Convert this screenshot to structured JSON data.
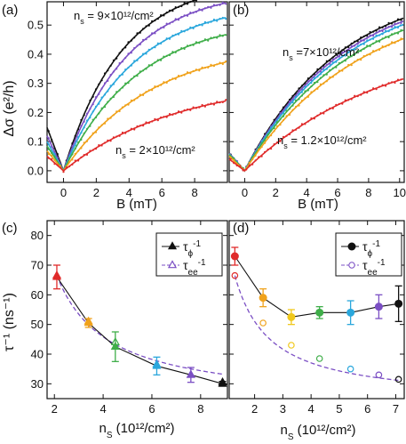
{
  "chart_data": [
    {
      "panel": "(a)",
      "type": "line",
      "xlabel": "B (mT)",
      "ylabel": "Δσ (e²/h)",
      "xlim": [
        -1,
        10
      ],
      "ylim": [
        -0.04,
        0.58
      ],
      "xticks": [
        0,
        2,
        4,
        6,
        8
      ],
      "yticks": [
        0.0,
        0.1,
        0.2,
        0.3,
        0.4,
        0.5
      ],
      "annotations": [
        {
          "text": "n",
          "sub": "s",
          "rest": " = 9×10¹²/cm²"
        },
        {
          "text": "n",
          "sub": "s",
          "rest": " = 2×10¹²/cm²"
        }
      ],
      "series": [
        {
          "color": "#111111",
          "values_at": [
            0.558,
            0.148
          ],
          "smax": 0.556
        },
        {
          "color": "#7b4fc4",
          "values_at": [
            0.525,
            0.138
          ],
          "smax": 0.53
        },
        {
          "color": "#2aa7dc",
          "values_at": [
            0.49,
            0.128
          ],
          "smax": 0.492
        },
        {
          "color": "#3fae49",
          "values_at": [
            0.445,
            0.115
          ],
          "smax": 0.448
        },
        {
          "color": "#f0a21b",
          "values_at": [
            0.375,
            0.08
          ],
          "smax": 0.376
        },
        {
          "color": "#e02b2b",
          "values_at": [
            0.27,
            0.06
          ],
          "smax": 0.268
        }
      ]
    },
    {
      "panel": "(b)",
      "type": "line",
      "xlabel": "B (mT)",
      "ylabel": "",
      "xlim": [
        -1,
        10.3
      ],
      "ylim": [
        -0.04,
        0.58
      ],
      "xticks": [
        0,
        2,
        4,
        6,
        8,
        10
      ],
      "annotations": [
        {
          "text": "n",
          "sub": "s",
          "rest": " =7×10¹²/cm²"
        },
        {
          "text": "n",
          "sub": "s",
          "rest": " = 1.2×10¹²/cm²"
        }
      ],
      "series": [
        {
          "color": "#111111",
          "smax": 0.405
        },
        {
          "color": "#7b4fc4",
          "smax": 0.402
        },
        {
          "color": "#2aa7dc",
          "smax": 0.398
        },
        {
          "color": "#3fae49",
          "smax": 0.39
        },
        {
          "color": "#f0a21b",
          "smax": 0.378
        },
        {
          "color": "#e02b2b",
          "smax": 0.29
        }
      ]
    },
    {
      "panel": "(c)",
      "type": "line",
      "xlabel": "n",
      "xlabel_sub": "S",
      "xlabel_rest": " (10¹²/cm²)",
      "ylabel": "τ⁻¹ (ns⁻¹)",
      "xlim": [
        1.7,
        9.1
      ],
      "ylim": [
        25,
        85
      ],
      "xticks": [
        2,
        4,
        6,
        8
      ],
      "yticks": [
        30,
        40,
        50,
        60,
        70,
        80
      ],
      "legend": [
        {
          "label": "τ",
          "sub": "ϕ",
          "sup": "-1",
          "marker": "filled-triangle"
        },
        {
          "label": "τ",
          "sub": "ee",
          "sup": "-1",
          "marker": "open-triangle"
        }
      ],
      "phi_points": [
        {
          "x": 2.1,
          "y": 66,
          "err": 4,
          "color": "#e02b2b"
        },
        {
          "x": 3.4,
          "y": 50.5,
          "err": 1.5,
          "color": "#f0a21b"
        },
        {
          "x": 4.5,
          "y": 42.5,
          "err": 5,
          "color": "#3fae49"
        },
        {
          "x": 6.2,
          "y": 36,
          "err": 3,
          "color": "#2aa7dc"
        },
        {
          "x": 7.6,
          "y": 33,
          "err": 2.5,
          "color": "#7b4fc4"
        },
        {
          "x": 8.9,
          "y": 30,
          "err": 0.8,
          "color": "#111111"
        }
      ],
      "ee_points": [
        {
          "x": 2.1,
          "y": 66.5
        },
        {
          "x": 3.4,
          "y": 51
        },
        {
          "x": 4.5,
          "y": 44
        },
        {
          "x": 6.2,
          "y": 36.5
        },
        {
          "x": 7.6,
          "y": 33
        },
        {
          "x": 8.9,
          "y": 30.5
        }
      ]
    },
    {
      "panel": "(d)",
      "type": "line",
      "xlabel": "n",
      "xlabel_sub": "S",
      "xlabel_rest": " (10¹²/cm²)",
      "xlim": [
        1.1,
        7.3
      ],
      "ylim": [
        25,
        85
      ],
      "xticks": [
        2,
        3,
        4,
        5,
        6,
        7
      ],
      "legend": [
        {
          "label": "τ",
          "sub": "ϕ",
          "sup": "-1",
          "marker": "filled-circle"
        },
        {
          "label": "τ",
          "sub": "ee",
          "sup": "-1",
          "marker": "open-circle"
        }
      ],
      "phi_points": [
        {
          "x": 1.3,
          "y": 73,
          "err": 3,
          "color": "#e02b2b"
        },
        {
          "x": 2.3,
          "y": 59,
          "err": 3,
          "color": "#f0a21b"
        },
        {
          "x": 3.3,
          "y": 52.5,
          "err": 2.5,
          "color": "#f0c81b"
        },
        {
          "x": 4.3,
          "y": 54,
          "err": 2,
          "color": "#3fae49"
        },
        {
          "x": 5.4,
          "y": 54,
          "err": 4,
          "color": "#2aa7dc"
        },
        {
          "x": 6.4,
          "y": 56,
          "err": 4,
          "color": "#7b4fc4"
        },
        {
          "x": 7.1,
          "y": 57,
          "err": 6,
          "color": "#111111"
        }
      ],
      "ee_points": [
        {
          "x": 1.3,
          "y": 66.5,
          "color": "#e02b2b"
        },
        {
          "x": 2.3,
          "y": 50.5,
          "color": "#f0a21b"
        },
        {
          "x": 3.3,
          "y": 43,
          "color": "#f0c81b"
        },
        {
          "x": 4.3,
          "y": 38.5,
          "color": "#3fae49"
        },
        {
          "x": 5.4,
          "y": 35,
          "color": "#2aa7dc"
        },
        {
          "x": 6.4,
          "y": 33,
          "color": "#7b4fc4"
        },
        {
          "x": 7.1,
          "y": 31.5,
          "color": "#111111"
        }
      ]
    }
  ],
  "text": {
    "a": "(a)",
    "b": "(b)",
    "c": "(c)",
    "d": "(d)",
    "ylabel_top": "Δσ (e²/h)",
    "ylabel_bottom": "τ⁻¹ (ns⁻¹)",
    "xlabel_top": "B (mT)"
  }
}
